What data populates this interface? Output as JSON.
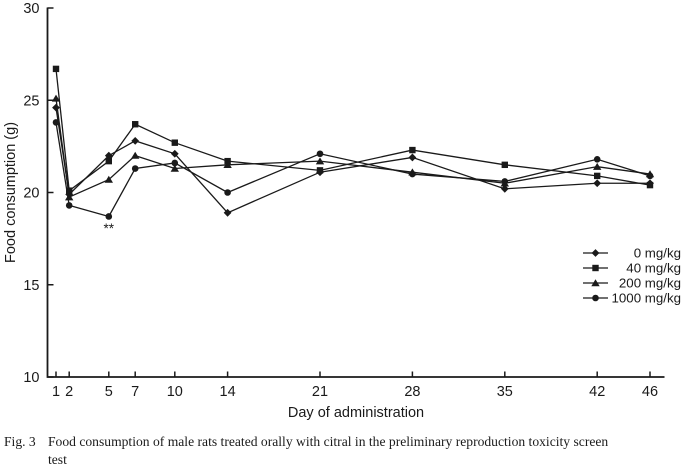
{
  "figure": {
    "y_axis_label": "Food consumption (g)",
    "x_axis_label": "Day of administration",
    "significance_annotation": "**"
  },
  "legend": {
    "items": [
      "0 mg/kg",
      "40 mg/kg",
      "200 mg/kg",
      "1000 mg/kg"
    ]
  },
  "caption": {
    "tag": "Fig. 3",
    "lines": [
      "Food consumption of male rats treated orally with citral in the preliminary reproduction toxicity screen",
      "test"
    ]
  },
  "chart_data": {
    "type": "line",
    "title": "",
    "xlabel": "Day of administration",
    "ylabel": "Food consumption (g)",
    "x": [
      1,
      2,
      5,
      7,
      10,
      14,
      21,
      28,
      35,
      42,
      46
    ],
    "xlim": [
      0.3,
      47.5
    ],
    "ylim": [
      10,
      30
    ],
    "yticks": [
      10,
      15,
      20,
      25,
      30
    ],
    "grid": false,
    "legend_position": "right-center",
    "line_color": "#1a1a1a",
    "series": [
      {
        "name": "0 mg/kg",
        "marker": "diamond",
        "values": [
          24.6,
          19.9,
          22.0,
          22.8,
          22.1,
          18.9,
          21.1,
          21.9,
          20.2,
          20.5,
          20.5
        ]
      },
      {
        "name": "40 mg/kg",
        "marker": "square",
        "values": [
          26.7,
          20.1,
          21.7,
          23.7,
          22.7,
          21.7,
          21.2,
          22.3,
          21.5,
          20.9,
          20.4
        ]
      },
      {
        "name": "200 mg/kg",
        "marker": "triangle",
        "values": [
          25.1,
          19.75,
          20.7,
          22.0,
          21.3,
          21.5,
          21.7,
          21.1,
          20.5,
          21.4,
          21.0
        ]
      },
      {
        "name": "1000 mg/kg",
        "marker": "circle",
        "values": [
          23.8,
          19.3,
          18.7,
          21.3,
          21.6,
          20.0,
          22.1,
          21.0,
          20.6,
          21.8,
          20.9
        ]
      }
    ],
    "annotations": [
      {
        "text": "**",
        "day": 5,
        "series": "1000 mg/kg",
        "position": "below-point"
      }
    ]
  }
}
